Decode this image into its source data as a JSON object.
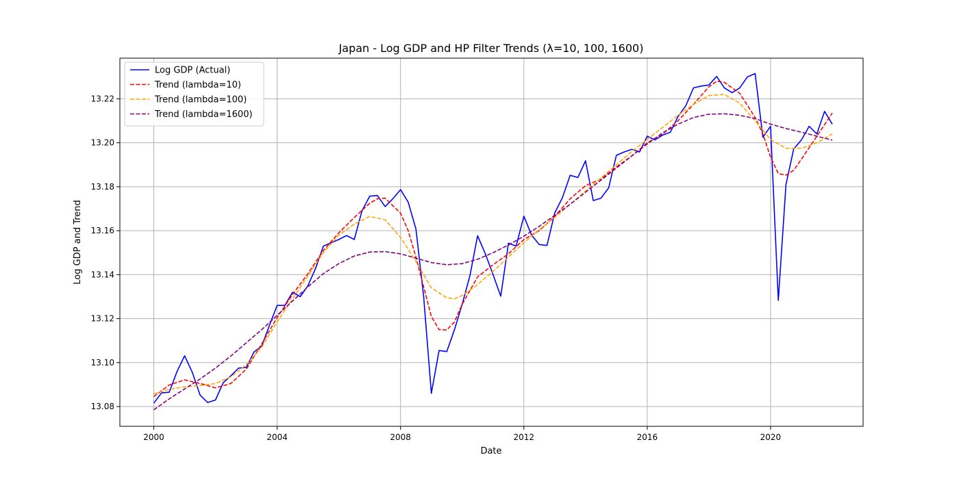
{
  "chart_data": {
    "type": "line",
    "title": "Japan - Log GDP and HP Filter Trends (λ=10, 100, 1600)",
    "xlabel": "Date",
    "ylabel": "Log GDP and Trend",
    "xlim": [
      1998.9,
      2023.0
    ],
    "ylim": [
      13.071,
      13.2385
    ],
    "x_ticks": [
      2000,
      2004,
      2008,
      2012,
      2016,
      2020
    ],
    "x_tick_labels": [
      "2000",
      "2004",
      "2008",
      "2012",
      "2016",
      "2020"
    ],
    "y_ticks": [
      13.08,
      13.1,
      13.12,
      13.14,
      13.16,
      13.18,
      13.2,
      13.22
    ],
    "y_tick_labels": [
      "13.08",
      "13.10",
      "13.12",
      "13.14",
      "13.16",
      "13.18",
      "13.20",
      "13.22"
    ],
    "grid": true,
    "legend_position": "top-left",
    "series": [
      {
        "name": "Log GDP (Actual)",
        "color": "#0000ff",
        "dash": "solid",
        "x": [
          2000.0,
          2000.25,
          2000.5,
          2000.75,
          2001.0,
          2001.25,
          2001.5,
          2001.75,
          2002.0,
          2002.25,
          2002.5,
          2002.75,
          2003.0,
          2003.25,
          2003.5,
          2003.75,
          2004.0,
          2004.25,
          2004.5,
          2004.75,
          2005.0,
          2005.25,
          2005.5,
          2005.75,
          2006.0,
          2006.25,
          2006.5,
          2006.75,
          2007.0,
          2007.25,
          2007.5,
          2007.75,
          2008.0,
          2008.25,
          2008.5,
          2008.75,
          2009.0,
          2009.25,
          2009.5,
          2009.75,
          2010.0,
          2010.25,
          2010.5,
          2010.75,
          2011.0,
          2011.25,
          2011.5,
          2011.75,
          2012.0,
          2012.25,
          2012.5,
          2012.75,
          2013.0,
          2013.25,
          2013.5,
          2013.75,
          2014.0,
          2014.25,
          2014.5,
          2014.75,
          2015.0,
          2015.25,
          2015.5,
          2015.75,
          2016.0,
          2016.25,
          2016.5,
          2016.75,
          2017.0,
          2017.25,
          2017.5,
          2017.75,
          2018.0,
          2018.25,
          2018.5,
          2018.75,
          2019.0,
          2019.25,
          2019.5,
          2019.75,
          2020.0,
          2020.25,
          2020.5,
          2020.75,
          2021.0,
          2021.25,
          2021.5,
          2021.75,
          2022.0
        ],
        "y": [
          13.0815,
          13.0862,
          13.0865,
          13.0958,
          13.1031,
          13.0955,
          13.0852,
          13.0818,
          13.083,
          13.0908,
          13.094,
          13.0975,
          13.0978,
          13.1048,
          13.1075,
          13.117,
          13.126,
          13.126,
          13.132,
          13.13,
          13.135,
          13.143,
          13.153,
          13.1545,
          13.156,
          13.1578,
          13.156,
          13.169,
          13.1757,
          13.176,
          13.171,
          13.1745,
          13.1787,
          13.173,
          13.1608,
          13.13,
          13.086,
          13.1055,
          13.105,
          13.115,
          13.1265,
          13.1395,
          13.1577,
          13.1495,
          13.14,
          13.1302,
          13.1543,
          13.153,
          13.1666,
          13.158,
          13.1537,
          13.1533,
          13.168,
          13.175,
          13.1852,
          13.1842,
          13.1918,
          13.1737,
          13.1748,
          13.1795,
          13.1943,
          13.1958,
          13.197,
          13.1958,
          13.203,
          13.2013,
          13.2035,
          13.2048,
          13.212,
          13.2168,
          13.225,
          13.2258,
          13.2263,
          13.2302,
          13.225,
          13.2228,
          13.225,
          13.23,
          13.2315,
          13.2025,
          13.2075,
          13.1283,
          13.181,
          13.1972,
          13.2013,
          13.2075,
          13.204,
          13.2143,
          13.2085
        ]
      },
      {
        "name": "Trend (lambda=10)",
        "color": "#ff0000",
        "dash": "dashed",
        "x": [
          2000.0,
          2000.5,
          2001.0,
          2001.5,
          2002.0,
          2002.5,
          2003.0,
          2003.5,
          2004.0,
          2004.5,
          2005.0,
          2005.5,
          2006.0,
          2006.5,
          2007.0,
          2007.25,
          2007.5,
          2008.0,
          2008.25,
          2008.5,
          2009.0,
          2009.25,
          2009.5,
          2009.75,
          2010.0,
          2010.5,
          2011.0,
          2011.5,
          2012.0,
          2012.5,
          2013.0,
          2013.5,
          2014.0,
          2014.5,
          2015.0,
          2015.5,
          2016.0,
          2016.5,
          2017.0,
          2017.5,
          2018.0,
          2018.25,
          2018.5,
          2019.0,
          2019.5,
          2019.75,
          2020.0,
          2020.25,
          2020.5,
          2020.75,
          2021.0,
          2021.5,
          2022.0
        ],
        "y": [
          13.0845,
          13.0898,
          13.0921,
          13.0905,
          13.0885,
          13.0905,
          13.097,
          13.1085,
          13.1205,
          13.131,
          13.1405,
          13.151,
          13.159,
          13.166,
          13.1725,
          13.1745,
          13.1748,
          13.168,
          13.16,
          13.148,
          13.121,
          13.115,
          13.1148,
          13.1185,
          13.1265,
          13.139,
          13.1445,
          13.1495,
          13.156,
          13.16,
          13.1665,
          13.1745,
          13.1805,
          13.1835,
          13.189,
          13.194,
          13.2,
          13.204,
          13.21,
          13.2175,
          13.2255,
          13.228,
          13.2275,
          13.2225,
          13.2115,
          13.204,
          13.1935,
          13.186,
          13.1853,
          13.1875,
          13.1925,
          13.203,
          13.2135
        ]
      },
      {
        "name": "Trend (lambda=100)",
        "color": "#ffa500",
        "dash": "dashed",
        "x": [
          2000.0,
          2000.5,
          2001.0,
          2001.5,
          2002.0,
          2002.5,
          2003.0,
          2003.5,
          2004.0,
          2004.5,
          2005.0,
          2005.5,
          2006.0,
          2006.5,
          2007.0,
          2007.5,
          2008.0,
          2008.5,
          2009.0,
          2009.5,
          2009.75,
          2010.0,
          2010.5,
          2011.0,
          2011.5,
          2012.0,
          2012.5,
          2013.0,
          2013.5,
          2014.0,
          2014.5,
          2015.0,
          2015.5,
          2016.0,
          2016.5,
          2017.0,
          2017.5,
          2018.0,
          2018.5,
          2019.0,
          2019.5,
          2020.0,
          2020.5,
          2021.0,
          2021.5,
          2022.0
        ],
        "y": [
          13.0858,
          13.0878,
          13.089,
          13.0895,
          13.0905,
          13.0935,
          13.099,
          13.107,
          13.1185,
          13.129,
          13.1395,
          13.15,
          13.158,
          13.163,
          13.1665,
          13.165,
          13.157,
          13.146,
          13.134,
          13.1295,
          13.129,
          13.1305,
          13.1355,
          13.1415,
          13.148,
          13.1545,
          13.1605,
          13.166,
          13.172,
          13.178,
          13.184,
          13.19,
          13.196,
          13.2015,
          13.207,
          13.2125,
          13.2175,
          13.2215,
          13.222,
          13.218,
          13.21,
          13.2015,
          13.1975,
          13.1975,
          13.2,
          13.204
        ]
      },
      {
        "name": "Trend (lambda=1600)",
        "color": "#800080",
        "dash": "dashed",
        "x": [
          2000.0,
          2000.5,
          2001.0,
          2001.5,
          2002.0,
          2002.5,
          2003.0,
          2003.5,
          2004.0,
          2004.5,
          2005.0,
          2005.5,
          2006.0,
          2006.5,
          2007.0,
          2007.5,
          2008.0,
          2008.5,
          2009.0,
          2009.5,
          2010.0,
          2010.5,
          2011.0,
          2011.5,
          2012.0,
          2012.5,
          2013.0,
          2013.5,
          2014.0,
          2014.5,
          2015.0,
          2015.5,
          2016.0,
          2016.5,
          2017.0,
          2017.5,
          2018.0,
          2018.5,
          2019.0,
          2019.5,
          2020.0,
          2020.5,
          2021.0,
          2021.5,
          2022.0
        ],
        "y": [
          13.0785,
          13.0835,
          13.088,
          13.0925,
          13.0975,
          13.103,
          13.109,
          13.115,
          13.1215,
          13.128,
          13.1345,
          13.1405,
          13.145,
          13.1485,
          13.1503,
          13.1505,
          13.1495,
          13.1475,
          13.1455,
          13.1445,
          13.145,
          13.147,
          13.15,
          13.1535,
          13.1575,
          13.162,
          13.167,
          13.172,
          13.1775,
          13.183,
          13.1885,
          13.194,
          13.1995,
          13.2045,
          13.2085,
          13.2115,
          13.213,
          13.2132,
          13.2125,
          13.211,
          13.2085,
          13.2065,
          13.2048,
          13.203,
          13.2012
        ]
      }
    ]
  }
}
